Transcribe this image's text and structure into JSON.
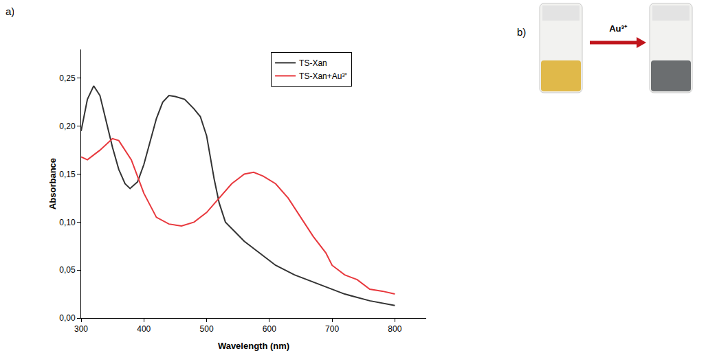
{
  "panel_labels": [
    "a)",
    "b)"
  ],
  "chart_data": {
    "type": "line",
    "x_label": "Wavelength (nm)",
    "y_label": "Absorbance",
    "xlim": [
      300,
      850
    ],
    "xticks": [
      300,
      400,
      500,
      600,
      700,
      800
    ],
    "ylim": [
      0,
      0.28
    ],
    "yticks": [
      {
        "value": 0,
        "label": "0,00"
      },
      {
        "value": 0.05,
        "label": "0,05"
      },
      {
        "value": 0.1,
        "label": "0,10"
      },
      {
        "value": 0.15,
        "label": "0,15"
      },
      {
        "value": 0.2,
        "label": "0,20"
      },
      {
        "value": 0.25,
        "label": "0,25"
      }
    ],
    "grid": false,
    "legend": "upper right",
    "series": [
      {
        "name": "TS-Xan",
        "color": "#333333",
        "x": [
          300,
          310,
          320,
          330,
          340,
          350,
          360,
          370,
          378,
          390,
          400,
          410,
          420,
          430,
          440,
          450,
          465,
          480,
          490,
          500,
          505,
          512,
          520,
          530,
          545,
          560,
          580,
          610,
          640,
          680,
          720,
          760,
          800
        ],
        "values": [
          0.195,
          0.228,
          0.242,
          0.232,
          0.205,
          0.178,
          0.155,
          0.14,
          0.135,
          0.142,
          0.16,
          0.185,
          0.208,
          0.225,
          0.232,
          0.231,
          0.228,
          0.218,
          0.21,
          0.19,
          0.17,
          0.145,
          0.12,
          0.1,
          0.09,
          0.08,
          0.07,
          0.055,
          0.045,
          0.035,
          0.025,
          0.018,
          0.013
        ]
      },
      {
        "name": "TS-Xan+Au³⁺",
        "color": "#e8383d",
        "x": [
          300,
          310,
          330,
          350,
          360,
          380,
          400,
          420,
          440,
          460,
          480,
          500,
          520,
          540,
          560,
          575,
          590,
          610,
          630,
          650,
          670,
          690,
          700,
          720,
          740,
          760,
          780,
          800
        ],
        "values": [
          0.168,
          0.165,
          0.175,
          0.187,
          0.185,
          0.165,
          0.13,
          0.105,
          0.098,
          0.096,
          0.1,
          0.11,
          0.125,
          0.14,
          0.15,
          0.152,
          0.148,
          0.14,
          0.125,
          0.105,
          0.085,
          0.068,
          0.055,
          0.045,
          0.04,
          0.03,
          0.028,
          0.025
        ]
      }
    ]
  },
  "photo": {
    "arrow_label": "Au³⁺"
  }
}
